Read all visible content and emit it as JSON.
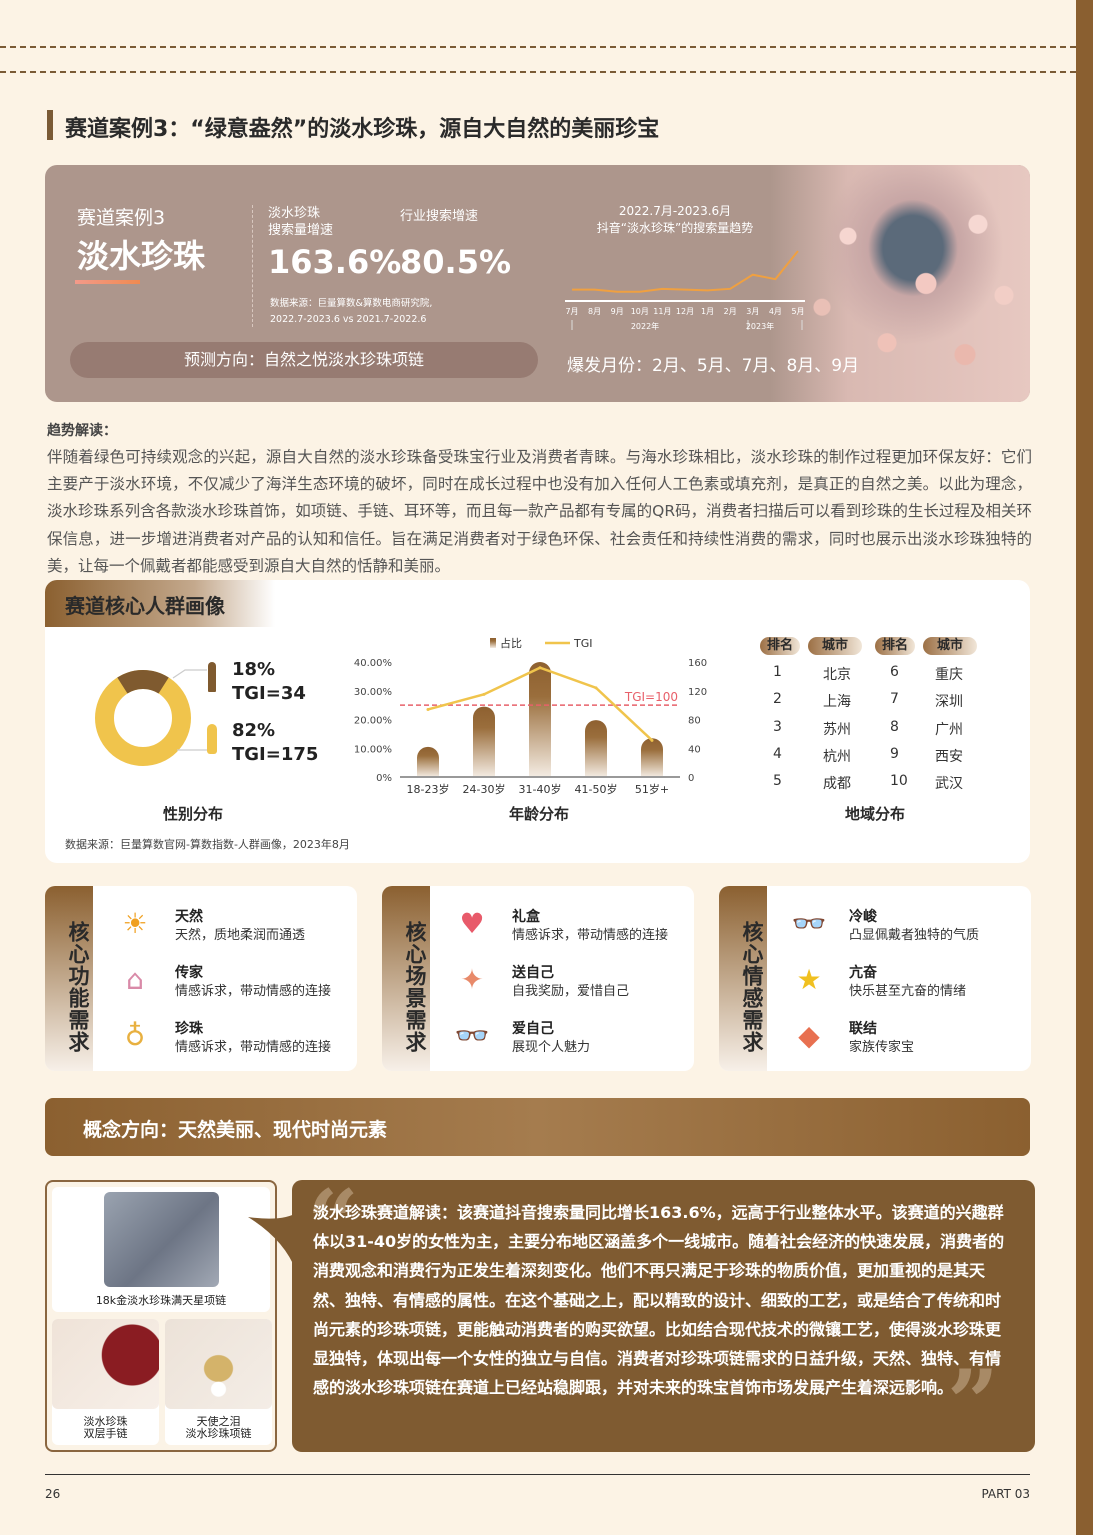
{
  "header": {
    "title": "赛道案例3：“绿意盎然”的淡水珍珠，源自大自然的美丽珍宝"
  },
  "hero": {
    "case_label": "赛道案例3",
    "case_name": "淡水珍珠",
    "metric1_label_1": "淡水珍珠",
    "metric1_label_2": "搜索量增速",
    "metric1_value": "163.6%",
    "metric2_label": "行业搜索增速",
    "metric2_value": "80.5%",
    "source_1": "数据来源：巨量算数&算数电商研究院,",
    "source_2": "2022.7-2023.6 vs 2021.7-2022.6",
    "forecast": "预测方向：自然之悦淡水珍珠项链",
    "trend_title_1": "2022.7月-2023.6月",
    "trend_title_2": "抖音“淡水珍珠”的搜索量趋势",
    "trend_months": [
      "7月",
      "8月",
      "9月",
      "10月",
      "11月",
      "12月",
      "1月",
      "2月",
      "3月",
      "4月",
      "5月"
    ],
    "trend_years": [
      "2022年",
      "2023年"
    ],
    "trend_relative": [
      10,
      10,
      7,
      7,
      11,
      10,
      9,
      11,
      30,
      24,
      62
    ],
    "trend_color": "#f0a040",
    "burst_months": "爆发月份：2月、5月、7月、8月、9月"
  },
  "trend": {
    "heading": "趋势解读：",
    "body": "伴随着绿色可持续观念的兴起，源自大自然的淡水珍珠备受珠宝行业及消费者青睐。与海水珍珠相比，淡水珍珠的制作过程更加环保友好：它们主要产于淡水环境，不仅减少了海洋生态环境的破坏，同时在成长过程中也没有加入任何人工色素或填充剂，是真正的自然之美。以此为理念，淡水珍珠系列含各款淡水珍珠首饰，如项链、手链、耳环等，而且每一款产品都有专属的QR码，消费者扫描后可以看到珍珠的生长过程及相关环保信息，进一步增进消费者对产品的认知和信任。旨在满足消费者对于绿色环保、社会责任和持续性消费的需求，同时也展示出淡水珍珠独特的美，让每一个佩戴者都能感受到源自大自然的恬静和美丽。"
  },
  "persona": {
    "title": "赛道核心人群画像",
    "gender": {
      "label": "性别分布",
      "male_pct": "18%",
      "male_tgi": "TGI=34",
      "female_pct": "82%",
      "female_tgi": "TGI=175",
      "male_share": 18,
      "female_share": 82,
      "male_color": "#7f5a2f",
      "female_color": "#f0c44c"
    },
    "region": {
      "label": "地域分布",
      "headers": [
        "排名",
        "城市",
        "排名",
        "城市"
      ],
      "rows": [
        [
          "1",
          "北京",
          "6",
          "重庆"
        ],
        [
          "2",
          "上海",
          "7",
          "深圳"
        ],
        [
          "3",
          "苏州",
          "8",
          "广州"
        ],
        [
          "4",
          "杭州",
          "9",
          "西安"
        ],
        [
          "5",
          "成都",
          "10",
          "武汉"
        ]
      ]
    },
    "source": "数据来源：巨量算数官网-算数指数-人群画像，2023年8月"
  },
  "chart_data": {
    "type": "bar",
    "title": "",
    "xlabel": "年龄分布",
    "categories": [
      "18-23岁",
      "24-30岁",
      "31-40岁",
      "41-50岁",
      "51岁+"
    ],
    "series": [
      {
        "name": "占比",
        "type": "bar",
        "axis": "left",
        "values": [
          10.5,
          24.5,
          40,
          19.8,
          13.5
        ]
      },
      {
        "name": "TGI",
        "type": "line",
        "axis": "right",
        "values": [
          94,
          115,
          152,
          124,
          51
        ],
        "color": "#f0c44c"
      }
    ],
    "y_left": {
      "ticks": [
        "0%",
        "10.00%",
        "20.00%",
        "30.00%",
        "40.00%"
      ],
      "lim": [
        0,
        40
      ]
    },
    "y_right": {
      "ticks": [
        "0",
        "40",
        "80",
        "120",
        "160"
      ],
      "lim": [
        0,
        160
      ]
    },
    "reference_line": {
      "label": "TGI=100",
      "value": 100,
      "color": "#e8606a"
    },
    "legend": "top"
  },
  "needs": [
    {
      "title": "核心功能需求",
      "items": [
        {
          "icon": "sun-icon",
          "glyph": "☀",
          "name": "天然",
          "desc": "天然，质地柔润而通透"
        },
        {
          "icon": "house-icon",
          "glyph": "⌂",
          "name": "传家",
          "desc": "情感诉求，带动情感的连接"
        },
        {
          "icon": "pendant-icon",
          "glyph": "♁",
          "name": "珍珠",
          "desc": "情感诉求，带动情感的连接"
        }
      ]
    },
    {
      "title": "核心场景需求",
      "items": [
        {
          "icon": "hearts-icon",
          "glyph": "♥",
          "name": "礼盒",
          "desc": "情感诉求，带动情感的连接"
        },
        {
          "icon": "hand-gift-icon",
          "glyph": "✦",
          "name": "送自己",
          "desc": "自我奖励，爱惜自己"
        },
        {
          "icon": "glasses-icon",
          "glyph": "👓",
          "name": "爱自己",
          "desc": "展现个人魅力"
        }
      ]
    },
    {
      "title": "核心情感需求",
      "items": [
        {
          "icon": "glasses-icon",
          "glyph": "👓",
          "name": "冷峻",
          "desc": "凸显佩戴者独特的气质"
        },
        {
          "icon": "star-icon",
          "glyph": "★",
          "name": "亢奋",
          "desc": "快乐甚至亢奋的情绪"
        },
        {
          "icon": "treasure-icon",
          "glyph": "◆",
          "name": "联结",
          "desc": "家族传家宝"
        }
      ]
    }
  ],
  "concept": "概念方向：天然美丽、现代时尚元素",
  "products": [
    {
      "caption": "18k金淡水珍珠满天星项链"
    },
    {
      "caption_1": "淡水珍珠",
      "caption_2": "双层手链"
    },
    {
      "caption_1": "天使之泪",
      "caption_2": "淡水珍珠项链"
    }
  ],
  "analysis": "淡水珍珠赛道解读：该赛道抖音搜索量同比增长163.6%，远高于行业整体水平。该赛道的兴趣群体以31-40岁的女性为主，主要分布地区涵盖多个一线城市。随着社会经济的快速发展，消费者的消费观念和消费行为正发生着深刻变化。他们不再只满足于珍珠的物质价值，更加重视的是其天然、独特、有情感的属性。在这个基础之上，配以精致的设计、细致的工艺，或是结合了传统和时尚元素的珍珠项链，更能触动消费者的购买欲望。比如结合现代技术的微镶工艺，使得淡水珍珠更显独特，体现出每一个女性的独立与自信。消费者对珍珠项链需求的日益升级，天然、独特、有情感的淡水珍珠项链在赛道上已经站稳脚跟，并对未来的珠宝首饰市场发展产生着深远影响。",
  "footer": {
    "page": "26",
    "part": "PART 03"
  }
}
